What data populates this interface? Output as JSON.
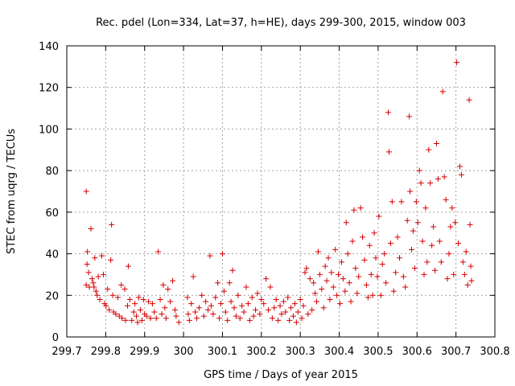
{
  "chart_data": {
    "type": "scatter",
    "title": "Rec. pdel (Lon=334, Lat=37, h=HE), days 299-300, 2015, window 003",
    "xlabel": "GPS time / Days of year 2015",
    "ylabel": "STEC from uqrg / TECUs",
    "xlim": [
      299.7,
      300.8
    ],
    "ylim": [
      0,
      140
    ],
    "x_ticks": [
      "299.7",
      "299.8",
      "299.9",
      "300",
      "300.1",
      "300.2",
      "300.3",
      "300.4",
      "300.5",
      "300.6",
      "300.7",
      "300.8"
    ],
    "y_ticks": [
      "0",
      "20",
      "40",
      "60",
      "80",
      "100",
      "120",
      "140"
    ],
    "grid": true,
    "marker": "+",
    "marker_color": "#d40000",
    "series": [
      {
        "name": "STEC",
        "points": [
          [
            299.75,
            70
          ],
          [
            299.753,
            41
          ],
          [
            299.752,
            35
          ],
          [
            299.756,
            31
          ],
          [
            299.75,
            25
          ],
          [
            299.758,
            24
          ],
          [
            299.762,
            52
          ],
          [
            299.765,
            28
          ],
          [
            299.768,
            26
          ],
          [
            299.77,
            24
          ],
          [
            299.772,
            38
          ],
          [
            299.775,
            22
          ],
          [
            299.778,
            20
          ],
          [
            299.781,
            29
          ],
          [
            299.785,
            18
          ],
          [
            299.79,
            39
          ],
          [
            299.794,
            30
          ],
          [
            299.797,
            16
          ],
          [
            299.801,
            15
          ],
          [
            299.805,
            23
          ],
          [
            299.809,
            13
          ],
          [
            299.813,
            37
          ],
          [
            299.815,
            54
          ],
          [
            299.818,
            20
          ],
          [
            299.82,
            12
          ],
          [
            299.826,
            11
          ],
          [
            299.831,
            19
          ],
          [
            299.835,
            10
          ],
          [
            299.84,
            25
          ],
          [
            299.842,
            9
          ],
          [
            299.849,
            23
          ],
          [
            299.851,
            8
          ],
          [
            299.856,
            15
          ],
          [
            299.858,
            34
          ],
          [
            299.862,
            18
          ],
          [
            299.867,
            8
          ],
          [
            299.872,
            12
          ],
          [
            299.875,
            16
          ],
          [
            299.879,
            10
          ],
          [
            299.882,
            7
          ],
          [
            299.885,
            19
          ],
          [
            299.889,
            13
          ],
          [
            299.893,
            8
          ],
          [
            299.897,
            18
          ],
          [
            299.9,
            11
          ],
          [
            299.905,
            10
          ],
          [
            299.91,
            17
          ],
          [
            299.915,
            9
          ],
          [
            299.92,
            16
          ],
          [
            299.925,
            12
          ],
          [
            299.93,
            9
          ],
          [
            299.935,
            41
          ],
          [
            299.94,
            18
          ],
          [
            299.944,
            11
          ],
          [
            299.948,
            25
          ],
          [
            299.952,
            14
          ],
          [
            299.955,
            9
          ],
          [
            299.96,
            23
          ],
          [
            299.966,
            17
          ],
          [
            299.972,
            27
          ],
          [
            299.978,
            13
          ],
          [
            299.981,
            10
          ],
          [
            299.988,
            7
          ],
          [
            300.01,
            19
          ],
          [
            300.012,
            11
          ],
          [
            300.015,
            8
          ],
          [
            300.02,
            16
          ],
          [
            300.025,
            29
          ],
          [
            300.03,
            12
          ],
          [
            300.034,
            9
          ],
          [
            300.04,
            14
          ],
          [
            300.047,
            20
          ],
          [
            300.052,
            10
          ],
          [
            300.057,
            17
          ],
          [
            300.063,
            13
          ],
          [
            300.068,
            39
          ],
          [
            300.071,
            15
          ],
          [
            300.076,
            11
          ],
          [
            300.082,
            19
          ],
          [
            300.088,
            26
          ],
          [
            300.092,
            9
          ],
          [
            300.096,
            16
          ],
          [
            300.1,
            40
          ],
          [
            300.104,
            22
          ],
          [
            300.108,
            12
          ],
          [
            300.113,
            8
          ],
          [
            300.118,
            26
          ],
          [
            300.122,
            17
          ],
          [
            300.126,
            32
          ],
          [
            300.13,
            14
          ],
          [
            300.135,
            10
          ],
          [
            300.14,
            20
          ],
          [
            300.145,
            9
          ],
          [
            300.15,
            15
          ],
          [
            300.155,
            12
          ],
          [
            300.161,
            24
          ],
          [
            300.166,
            16
          ],
          [
            300.17,
            8
          ],
          [
            300.176,
            19
          ],
          [
            300.18,
            10
          ],
          [
            300.185,
            13
          ],
          [
            300.19,
            21
          ],
          [
            300.196,
            11
          ],
          [
            300.2,
            18
          ],
          [
            300.206,
            16
          ],
          [
            300.212,
            28
          ],
          [
            300.218,
            13
          ],
          [
            300.223,
            24
          ],
          [
            300.228,
            9
          ],
          [
            300.233,
            14
          ],
          [
            300.238,
            18
          ],
          [
            300.243,
            8
          ],
          [
            300.248,
            15
          ],
          [
            300.252,
            11
          ],
          [
            300.257,
            17
          ],
          [
            300.262,
            12
          ],
          [
            300.268,
            19
          ],
          [
            300.272,
            8
          ],
          [
            300.276,
            14
          ],
          [
            300.282,
            10
          ],
          [
            300.286,
            16
          ],
          [
            300.29,
            7
          ],
          [
            300.294,
            12
          ],
          [
            300.3,
            18
          ],
          [
            300.304,
            9
          ],
          [
            300.308,
            15
          ],
          [
            300.312,
            31
          ],
          [
            300.316,
            33
          ],
          [
            300.32,
            11
          ],
          [
            300.325,
            28
          ],
          [
            300.33,
            13
          ],
          [
            300.334,
            26
          ],
          [
            300.338,
            21
          ],
          [
            300.342,
            17
          ],
          [
            300.346,
            41
          ],
          [
            300.35,
            30
          ],
          [
            300.355,
            23
          ],
          [
            300.36,
            14
          ],
          [
            300.364,
            34
          ],
          [
            300.368,
            27
          ],
          [
            300.372,
            38
          ],
          [
            300.376,
            18
          ],
          [
            300.38,
            31
          ],
          [
            300.385,
            24
          ],
          [
            300.39,
            42
          ],
          [
            300.394,
            20
          ],
          [
            300.398,
            30
          ],
          [
            300.402,
            16
          ],
          [
            300.406,
            36
          ],
          [
            300.41,
            28
          ],
          [
            300.415,
            22
          ],
          [
            300.418,
            55
          ],
          [
            300.422,
            40
          ],
          [
            300.426,
            26
          ],
          [
            300.43,
            17
          ],
          [
            300.434,
            46
          ],
          [
            300.438,
            61
          ],
          [
            300.442,
            33
          ],
          [
            300.446,
            21
          ],
          [
            300.45,
            29
          ],
          [
            300.455,
            62
          ],
          [
            300.46,
            48
          ],
          [
            300.465,
            37
          ],
          [
            300.47,
            25
          ],
          [
            300.474,
            19
          ],
          [
            300.478,
            44
          ],
          [
            300.482,
            30
          ],
          [
            300.486,
            20
          ],
          [
            300.49,
            50
          ],
          [
            300.494,
            38
          ],
          [
            300.498,
            29
          ],
          [
            300.502,
            58
          ],
          [
            300.507,
            20
          ],
          [
            300.511,
            35
          ],
          [
            300.516,
            40
          ],
          [
            300.52,
            26
          ],
          [
            300.526,
            108
          ],
          [
            300.528,
            89
          ],
          [
            300.532,
            45
          ],
          [
            300.536,
            65
          ],
          [
            300.54,
            22
          ],
          [
            300.545,
            31
          ],
          [
            300.55,
            48
          ],
          [
            300.555,
            38
          ],
          [
            300.56,
            65
          ],
          [
            300.565,
            29
          ],
          [
            300.57,
            24
          ],
          [
            300.575,
            56
          ],
          [
            300.58,
            106
          ],
          [
            300.582,
            70
          ],
          [
            300.586,
            42
          ],
          [
            300.59,
            51
          ],
          [
            300.594,
            33
          ],
          [
            300.598,
            65
          ],
          [
            300.602,
            55
          ],
          [
            300.606,
            80
          ],
          [
            300.61,
            74
          ],
          [
            300.614,
            46
          ],
          [
            300.618,
            30
          ],
          [
            300.622,
            62
          ],
          [
            300.626,
            36
          ],
          [
            300.63,
            90
          ],
          [
            300.634,
            74
          ],
          [
            300.638,
            44
          ],
          [
            300.642,
            53
          ],
          [
            300.646,
            32
          ],
          [
            300.65,
            93
          ],
          [
            300.654,
            76
          ],
          [
            300.658,
            46
          ],
          [
            300.662,
            36
          ],
          [
            300.666,
            118
          ],
          [
            300.67,
            77
          ],
          [
            300.674,
            66
          ],
          [
            300.678,
            28
          ],
          [
            300.682,
            40
          ],
          [
            300.686,
            53
          ],
          [
            300.69,
            62
          ],
          [
            300.694,
            30
          ],
          [
            300.698,
            55
          ],
          [
            300.702,
            132
          ],
          [
            300.706,
            45
          ],
          [
            300.71,
            82
          ],
          [
            300.714,
            78
          ],
          [
            300.718,
            36
          ],
          [
            300.722,
            30
          ],
          [
            300.726,
            41
          ],
          [
            300.73,
            25
          ],
          [
            300.734,
            114
          ],
          [
            300.736,
            54
          ],
          [
            300.738,
            34
          ],
          [
            300.74,
            27
          ]
        ]
      }
    ]
  }
}
